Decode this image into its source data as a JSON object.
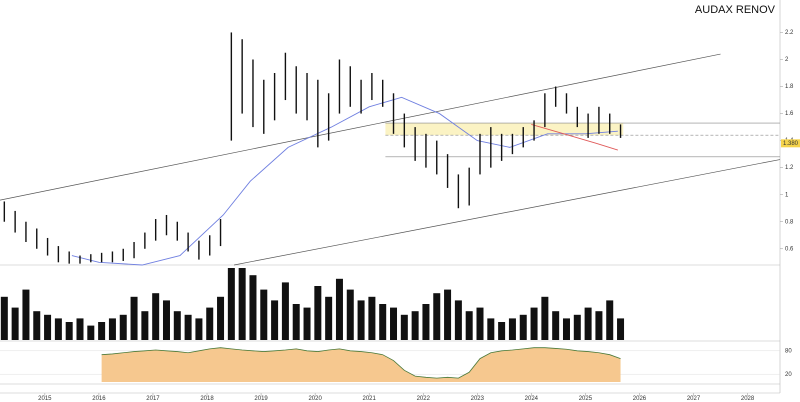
{
  "chart_data": {
    "type": "ohlc",
    "title": "AUDAX RENOV",
    "xlim": [
      2014.17,
      2028.6
    ],
    "xticks": [
      2015,
      2016,
      2017,
      2018,
      2019,
      2020,
      2021,
      2022,
      2023,
      2024,
      2025,
      2026,
      2027,
      2028
    ],
    "ylim": [
      0.48,
      2.44
    ],
    "yticks": [
      0.6,
      0.8,
      1,
      1.2,
      1.4,
      1.6,
      1.8,
      2,
      2.2
    ],
    "x": [
      2014.25,
      2014.45,
      2014.65,
      2014.85,
      2015.05,
      2015.25,
      2015.45,
      2015.65,
      2015.85,
      2016.05,
      2016.25,
      2016.45,
      2016.65,
      2016.85,
      2017.05,
      2017.25,
      2017.45,
      2017.65,
      2017.85,
      2018.05,
      2018.25,
      2018.45,
      2018.65,
      2018.85,
      2019.05,
      2019.25,
      2019.45,
      2019.65,
      2019.85,
      2020.05,
      2020.25,
      2020.45,
      2020.65,
      2020.85,
      2021.05,
      2021.25,
      2021.45,
      2021.65,
      2021.85,
      2022.05,
      2022.25,
      2022.45,
      2022.65,
      2022.85,
      2023.05,
      2023.25,
      2023.45,
      2023.65,
      2023.85,
      2024.05,
      2024.25,
      2024.45,
      2024.65,
      2024.85,
      2025.05,
      2025.25,
      2025.45,
      2025.65
    ],
    "high": [
      0.95,
      0.88,
      0.8,
      0.75,
      0.68,
      0.62,
      0.58,
      0.55,
      0.56,
      0.57,
      0.58,
      0.6,
      0.65,
      0.72,
      0.82,
      0.85,
      0.8,
      0.72,
      0.66,
      0.7,
      0.82,
      2.2,
      2.15,
      2.0,
      1.85,
      1.9,
      2.05,
      1.95,
      1.9,
      1.85,
      1.75,
      2.0,
      1.95,
      1.85,
      1.9,
      1.85,
      1.75,
      1.6,
      1.5,
      1.45,
      1.4,
      1.3,
      1.15,
      1.2,
      1.45,
      1.5,
      1.45,
      1.45,
      1.5,
      1.55,
      1.75,
      1.8,
      1.75,
      1.65,
      1.6,
      1.65,
      1.6,
      1.52
    ],
    "low": [
      0.8,
      0.72,
      0.65,
      0.6,
      0.55,
      0.5,
      0.49,
      0.49,
      0.5,
      0.5,
      0.5,
      0.51,
      0.53,
      0.6,
      0.66,
      0.7,
      0.66,
      0.58,
      0.52,
      0.55,
      0.62,
      1.4,
      1.6,
      1.5,
      1.45,
      1.55,
      1.7,
      1.6,
      1.55,
      1.35,
      1.4,
      1.6,
      1.65,
      1.6,
      1.7,
      1.65,
      1.45,
      1.35,
      1.25,
      1.2,
      1.15,
      1.05,
      0.9,
      0.92,
      1.15,
      1.2,
      1.25,
      1.3,
      1.35,
      1.4,
      1.5,
      1.65,
      1.6,
      1.5,
      1.42,
      1.45,
      1.45,
      1.42
    ],
    "color": "#111111",
    "moving_averages": [
      {
        "color": "#6f7fe0",
        "x": [
          2015.5,
          2016,
          2016.8,
          2017.5,
          2018.3,
          2018.8,
          2019.5,
          2020.3,
          2021,
          2021.6,
          2022.3,
          2023,
          2023.6,
          2024.3,
          2025,
          2025.6
        ],
        "values": [
          0.55,
          0.5,
          0.48,
          0.55,
          0.85,
          1.1,
          1.35,
          1.5,
          1.65,
          1.72,
          1.6,
          1.4,
          1.35,
          1.45,
          1.45,
          1.47
        ]
      },
      {
        "color": "#e05a5a",
        "x": [
          2024,
          2024.6,
          2025.2,
          2025.6
        ],
        "values": [
          1.52,
          1.45,
          1.38,
          1.33
        ]
      }
    ],
    "trendlines": [
      {
        "x": [
          2014.17,
          2027.5
        ],
        "values": [
          0.96,
          2.04
        ]
      },
      {
        "x": [
          2018.5,
          2028.6
        ],
        "values": [
          0.48,
          1.26
        ]
      }
    ],
    "zone": {
      "x": [
        2021.3,
        2025.7
      ],
      "values": [
        1.44,
        1.53
      ],
      "color": "#fbf3c4"
    },
    "levels": [
      1.53,
      1.44,
      1.28
    ],
    "last_price": {
      "value": 1.38,
      "label": "1.380"
    },
    "volume": {
      "color": "#111111",
      "ylim": [
        0,
        100
      ],
      "values": [
        60,
        45,
        70,
        40,
        35,
        30,
        25,
        30,
        20,
        25,
        30,
        35,
        60,
        40,
        65,
        55,
        40,
        35,
        30,
        45,
        60,
        100,
        100,
        90,
        70,
        55,
        80,
        50,
        45,
        75,
        60,
        85,
        70,
        55,
        60,
        50,
        45,
        35,
        40,
        50,
        65,
        70,
        55,
        40,
        45,
        30,
        25,
        30,
        35,
        45,
        60,
        40,
        30,
        35,
        45,
        40,
        55,
        30
      ]
    },
    "oscillator": {
      "color": "#f6c88f",
      "line_color": "#4b7a3a",
      "ylim": [
        0,
        100
      ],
      "yticks": [
        20,
        80
      ],
      "values": [
        null,
        null,
        null,
        null,
        null,
        null,
        null,
        null,
        null,
        70,
        72,
        75,
        78,
        80,
        82,
        80,
        78,
        75,
        80,
        85,
        88,
        85,
        82,
        80,
        78,
        80,
        82,
        85,
        80,
        78,
        82,
        85,
        80,
        78,
        75,
        70,
        55,
        30,
        15,
        12,
        10,
        12,
        10,
        25,
        60,
        75,
        80,
        82,
        85,
        88,
        88,
        86,
        84,
        80,
        78,
        75,
        70,
        60
      ]
    }
  }
}
